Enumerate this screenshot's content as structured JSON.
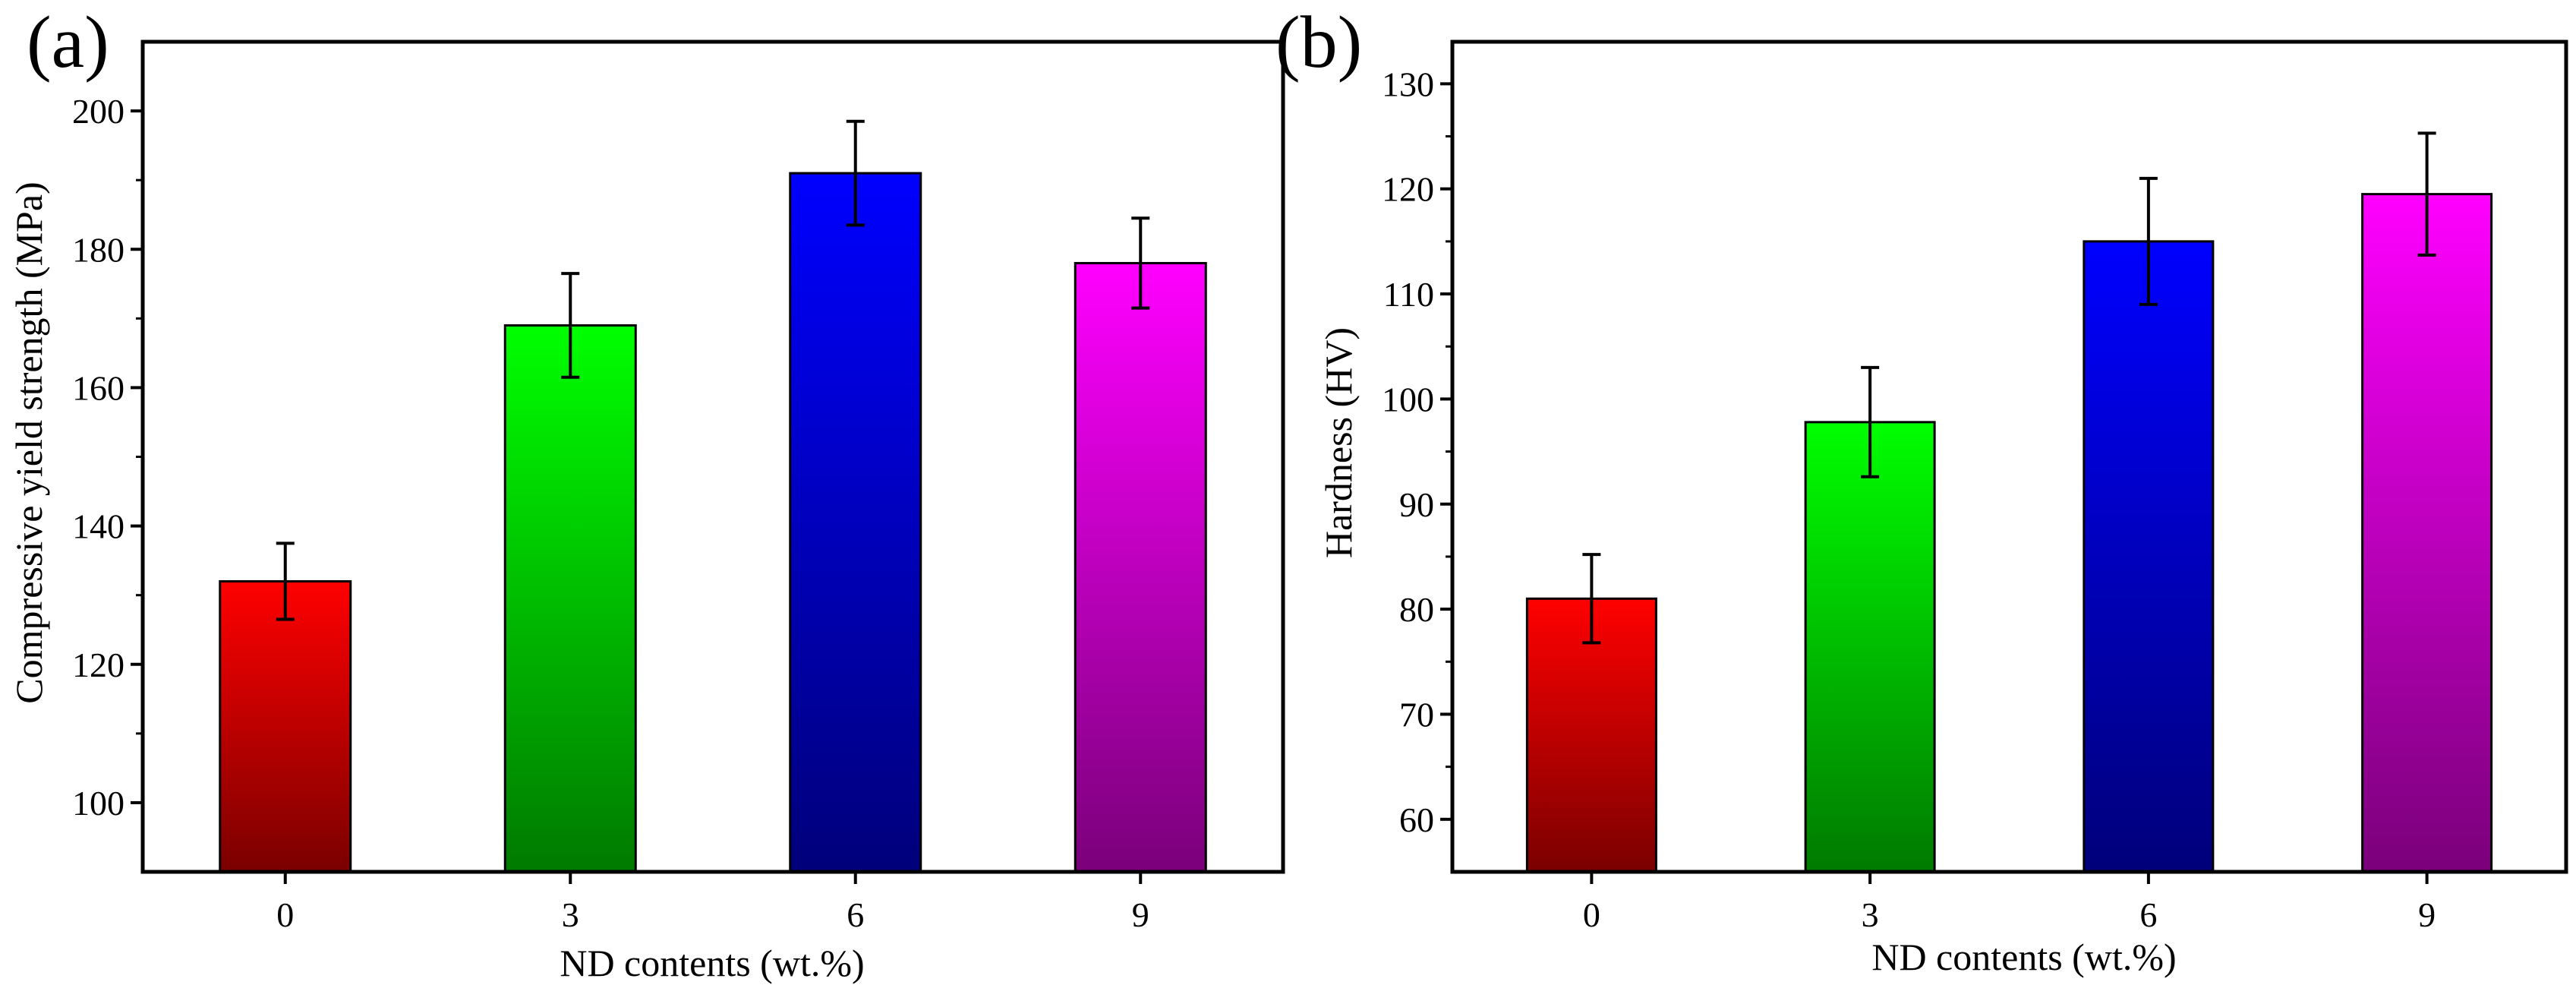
{
  "chart_data": [
    {
      "panel_label": "(a)",
      "type": "bar",
      "categories": [
        "0",
        "3",
        "6",
        "9"
      ],
      "values": [
        132,
        169,
        191,
        178
      ],
      "errors": [
        5.5,
        7.5,
        7.5,
        6.5
      ],
      "xlabel": "ND contents (wt.%)",
      "ylabel": "Compressive yield strength (MPa)",
      "ylim": [
        90,
        210
      ],
      "yticks": [
        100,
        120,
        140,
        160,
        180,
        200
      ],
      "colors": [
        {
          "top": "#ff0000",
          "bottom": "#7a0000"
        },
        {
          "top": "#00ff00",
          "bottom": "#007a00"
        },
        {
          "top": "#0000ff",
          "bottom": "#00007a"
        },
        {
          "top": "#ff00ff",
          "bottom": "#7a007a"
        }
      ]
    },
    {
      "panel_label": "(b)",
      "type": "bar",
      "categories": [
        "0",
        "3",
        "6",
        "9"
      ],
      "values": [
        81,
        97.8,
        115,
        119.5
      ],
      "errors": [
        4.2,
        5.2,
        6,
        5.8
      ],
      "xlabel": "ND contents (wt.%)",
      "ylabel": "Hardness (HV)",
      "ylim": [
        55,
        134
      ],
      "yticks": [
        60,
        70,
        80,
        90,
        100,
        110,
        120,
        130
      ],
      "colors": [
        {
          "top": "#ff0000",
          "bottom": "#7a0000"
        },
        {
          "top": "#00ff00",
          "bottom": "#007a00"
        },
        {
          "top": "#0000ff",
          "bottom": "#00007a"
        },
        {
          "top": "#ff00ff",
          "bottom": "#7a007a"
        }
      ]
    }
  ]
}
